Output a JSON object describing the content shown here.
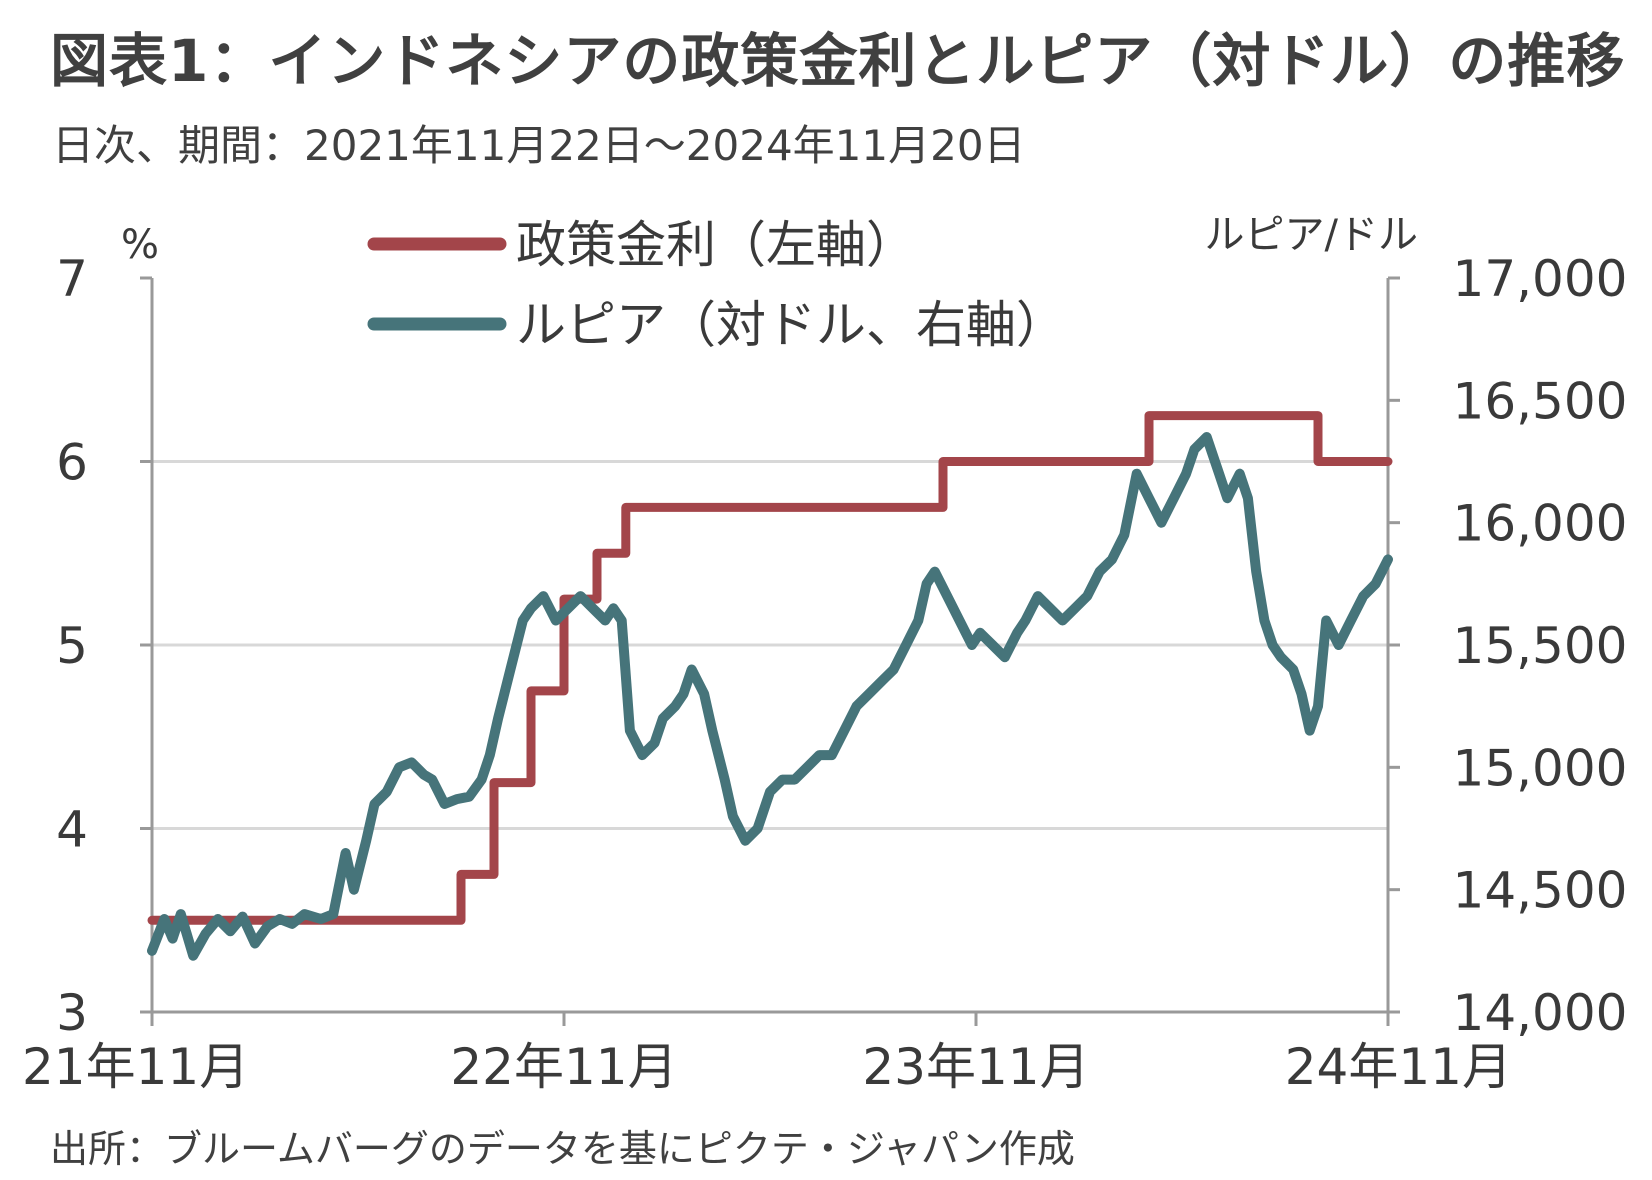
{
  "title": "図表1：インドネシアの政策金利とルピア（対ドル）の推移",
  "subtitle": "日次、期間：2021年11月22日～2024年11月20日",
  "source": "出所：ブルームバーグのデータを基にピクテ・ジャパン作成",
  "colors": {
    "policy_rate": "#a3454a",
    "rupiah": "#46747a",
    "grid": "#d8d8d8",
    "axis": "#999999"
  },
  "chart_data": {
    "type": "line",
    "left_axis": {
      "unit_label": "%",
      "ylim": [
        3,
        7
      ],
      "ticks": [
        "3",
        "4",
        "5",
        "6",
        "7"
      ]
    },
    "right_axis": {
      "unit_label": "ルピア/ドル",
      "ylim": [
        14000,
        17000
      ],
      "ticks": [
        "14,000",
        "14,500",
        "15,000",
        "15,500",
        "16,000",
        "16,500",
        "17,000"
      ]
    },
    "x_axis": {
      "ticks": [
        "21年11月",
        "22年11月",
        "23年11月",
        "24年11月"
      ],
      "xlim": [
        2021.89,
        2024.89
      ]
    },
    "grid": "horizontal",
    "legend_position": "top-center",
    "series": [
      {
        "name": "政策金利（左軸）",
        "axis": "left",
        "step": true,
        "points": [
          [
            2021.89,
            3.5
          ],
          [
            2022.64,
            3.75
          ],
          [
            2022.72,
            4.25
          ],
          [
            2022.81,
            4.75
          ],
          [
            2022.89,
            5.25
          ],
          [
            2022.97,
            5.5
          ],
          [
            2023.04,
            5.75
          ],
          [
            2023.81,
            6.0
          ],
          [
            2024.31,
            6.25
          ],
          [
            2024.72,
            6.0
          ],
          [
            2024.89,
            6.0
          ]
        ]
      },
      {
        "name": "ルピア（対ドル、右軸）",
        "axis": "right",
        "points": [
          [
            2021.89,
            14250
          ],
          [
            2021.92,
            14380
          ],
          [
            2021.94,
            14300
          ],
          [
            2021.96,
            14400
          ],
          [
            2021.99,
            14230
          ],
          [
            2022.02,
            14320
          ],
          [
            2022.05,
            14380
          ],
          [
            2022.08,
            14330
          ],
          [
            2022.11,
            14390
          ],
          [
            2022.14,
            14280
          ],
          [
            2022.17,
            14350
          ],
          [
            2022.2,
            14380
          ],
          [
            2022.23,
            14360
          ],
          [
            2022.26,
            14400
          ],
          [
            2022.3,
            14380
          ],
          [
            2022.33,
            14400
          ],
          [
            2022.36,
            14650
          ],
          [
            2022.38,
            14500
          ],
          [
            2022.41,
            14700
          ],
          [
            2022.43,
            14850
          ],
          [
            2022.46,
            14900
          ],
          [
            2022.49,
            15000
          ],
          [
            2022.52,
            15020
          ],
          [
            2022.55,
            14970
          ],
          [
            2022.57,
            14950
          ],
          [
            2022.6,
            14850
          ],
          [
            2022.63,
            14870
          ],
          [
            2022.66,
            14880
          ],
          [
            2022.69,
            14950
          ],
          [
            2022.71,
            15050
          ],
          [
            2022.73,
            15200
          ],
          [
            2022.76,
            15400
          ],
          [
            2022.79,
            15600
          ],
          [
            2022.81,
            15650
          ],
          [
            2022.84,
            15700
          ],
          [
            2022.87,
            15600
          ],
          [
            2022.9,
            15650
          ],
          [
            2022.93,
            15700
          ],
          [
            2022.96,
            15650
          ],
          [
            2022.99,
            15600
          ],
          [
            2023.01,
            15650
          ],
          [
            2023.03,
            15600
          ],
          [
            2023.05,
            15150
          ],
          [
            2023.08,
            15050
          ],
          [
            2023.11,
            15100
          ],
          [
            2023.13,
            15200
          ],
          [
            2023.16,
            15250
          ],
          [
            2023.18,
            15300
          ],
          [
            2023.2,
            15400
          ],
          [
            2023.23,
            15300
          ],
          [
            2023.25,
            15150
          ],
          [
            2023.28,
            14950
          ],
          [
            2023.3,
            14800
          ],
          [
            2023.33,
            14700
          ],
          [
            2023.36,
            14750
          ],
          [
            2023.39,
            14900
          ],
          [
            2023.42,
            14950
          ],
          [
            2023.45,
            14950
          ],
          [
            2023.48,
            15000
          ],
          [
            2023.51,
            15050
          ],
          [
            2023.54,
            15050
          ],
          [
            2023.57,
            15150
          ],
          [
            2023.6,
            15250
          ],
          [
            2023.63,
            15300
          ],
          [
            2023.66,
            15350
          ],
          [
            2023.69,
            15400
          ],
          [
            2023.72,
            15500
          ],
          [
            2023.75,
            15600
          ],
          [
            2023.77,
            15750
          ],
          [
            2023.79,
            15800
          ],
          [
            2023.82,
            15700
          ],
          [
            2023.85,
            15600
          ],
          [
            2023.88,
            15500
          ],
          [
            2023.9,
            15550
          ],
          [
            2023.93,
            15500
          ],
          [
            2023.96,
            15450
          ],
          [
            2023.99,
            15550
          ],
          [
            2024.01,
            15600
          ],
          [
            2024.04,
            15700
          ],
          [
            2024.07,
            15650
          ],
          [
            2024.1,
            15600
          ],
          [
            2024.13,
            15650
          ],
          [
            2024.16,
            15700
          ],
          [
            2024.19,
            15800
          ],
          [
            2024.22,
            15850
          ],
          [
            2024.25,
            15950
          ],
          [
            2024.28,
            16200
          ],
          [
            2024.31,
            16100
          ],
          [
            2024.34,
            16000
          ],
          [
            2024.37,
            16100
          ],
          [
            2024.4,
            16200
          ],
          [
            2024.42,
            16300
          ],
          [
            2024.45,
            16350
          ],
          [
            2024.48,
            16200
          ],
          [
            2024.5,
            16100
          ],
          [
            2024.53,
            16200
          ],
          [
            2024.55,
            16100
          ],
          [
            2024.57,
            15800
          ],
          [
            2024.59,
            15600
          ],
          [
            2024.61,
            15500
          ],
          [
            2024.63,
            15450
          ],
          [
            2024.66,
            15400
          ],
          [
            2024.68,
            15300
          ],
          [
            2024.7,
            15150
          ],
          [
            2024.72,
            15250
          ],
          [
            2024.74,
            15600
          ],
          [
            2024.77,
            15500
          ],
          [
            2024.8,
            15600
          ],
          [
            2024.83,
            15700
          ],
          [
            2024.86,
            15750
          ],
          [
            2024.89,
            15850
          ]
        ]
      }
    ]
  }
}
